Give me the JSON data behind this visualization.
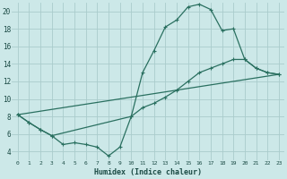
{
  "xlabel": "Humidex (Indice chaleur)",
  "bg_color": "#cce8e8",
  "grid_color": "#aacccc",
  "line_color": "#2a7060",
  "xlim": [
    -0.5,
    23.5
  ],
  "ylim": [
    3.0,
    21.0
  ],
  "yticks": [
    4,
    6,
    8,
    10,
    12,
    14,
    16,
    18,
    20
  ],
  "xticks": [
    0,
    1,
    2,
    3,
    4,
    5,
    6,
    7,
    8,
    9,
    10,
    11,
    12,
    13,
    14,
    15,
    16,
    17,
    18,
    19,
    20,
    21,
    22,
    23
  ],
  "series1_x": [
    0,
    1,
    2,
    3,
    4,
    5,
    6,
    7,
    8,
    9,
    10,
    11,
    12,
    13,
    14,
    15,
    16,
    17,
    18,
    19,
    20,
    21,
    22,
    23
  ],
  "series1_y": [
    8.2,
    7.3,
    6.5,
    5.8,
    4.8,
    5.0,
    4.8,
    4.5,
    3.5,
    4.5,
    8.0,
    13.0,
    15.5,
    18.2,
    19.0,
    20.5,
    20.8,
    20.2,
    17.8,
    18.0,
    14.5,
    13.5,
    13.0,
    12.8
  ],
  "series2_x": [
    0,
    1,
    2,
    3,
    10,
    11,
    12,
    13,
    14,
    15,
    16,
    17,
    18,
    19,
    20,
    21,
    22,
    23
  ],
  "series2_y": [
    8.2,
    7.3,
    6.5,
    5.8,
    8.0,
    9.0,
    9.5,
    10.2,
    11.0,
    12.0,
    13.0,
    13.5,
    14.0,
    14.5,
    14.5,
    13.5,
    13.0,
    12.8
  ],
  "series3_x": [
    0,
    23
  ],
  "series3_y": [
    8.2,
    12.8
  ]
}
